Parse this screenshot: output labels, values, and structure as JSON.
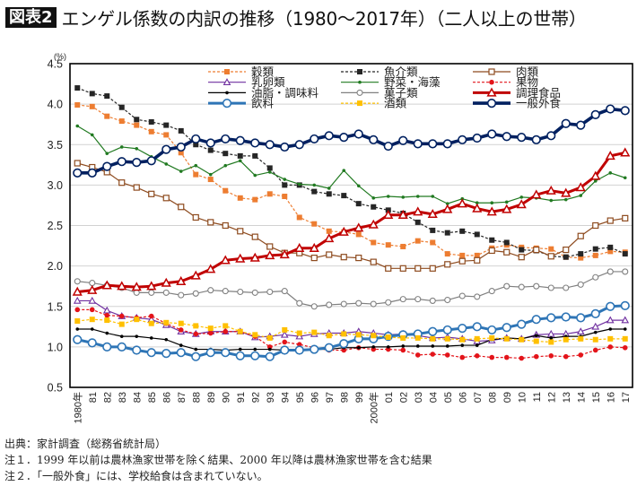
{
  "header": {
    "badge": "図表2"
  },
  "chart_data": {
    "type": "line",
    "title": "エンゲル係数の内訳の推移（1980～2017年）（二人以上の世帯）",
    "xlabel": "",
    "ylabel": "(%)",
    "ylim": [
      0.5,
      4.5
    ],
    "grid": "horizontal",
    "legend_position": "top-right",
    "y_ticks": [
      {
        "value": 0.5,
        "label": "0.5"
      },
      {
        "value": 1.0,
        "label": "1.0"
      },
      {
        "value": 1.5,
        "label": "1.5"
      },
      {
        "value": 2.0,
        "label": "2.0"
      },
      {
        "value": 2.5,
        "label": "2.5"
      },
      {
        "value": 3.0,
        "label": "3.0"
      },
      {
        "value": 3.5,
        "label": "3.5"
      },
      {
        "value": 4.0,
        "label": "4.0"
      },
      {
        "value": 4.5,
        "label": "4.5"
      }
    ],
    "x": [
      1980,
      1981,
      1982,
      1983,
      1984,
      1985,
      1986,
      1987,
      1988,
      1989,
      1990,
      1991,
      1992,
      1993,
      1994,
      1995,
      1996,
      1997,
      1998,
      1999,
      2000,
      2001,
      2002,
      2003,
      2004,
      2005,
      2006,
      2007,
      2008,
      2009,
      2010,
      2011,
      2012,
      2013,
      2014,
      2015,
      2016,
      2017
    ],
    "x_tick_labels": [
      "1980年",
      "81",
      "82",
      "83",
      "84",
      "85",
      "86",
      "87",
      "88",
      "89",
      "90",
      "91",
      "92",
      "93",
      "94",
      "95",
      "96",
      "97",
      "98",
      "99",
      "2000年",
      "01",
      "02",
      "03",
      "04",
      "05",
      "06",
      "07",
      "08",
      "09",
      "10",
      "11",
      "12",
      "13",
      "14",
      "15",
      "16",
      "17"
    ],
    "series": [
      {
        "name": "穀類",
        "color": "#ED7D31",
        "line_style": "dashed",
        "marker": "square-filled",
        "weight": "thin",
        "values": [
          3.99,
          3.97,
          3.85,
          3.79,
          3.74,
          3.66,
          3.62,
          3.4,
          3.13,
          3.07,
          2.93,
          2.84,
          2.82,
          2.89,
          2.86,
          2.6,
          2.52,
          2.43,
          2.42,
          2.39,
          2.29,
          2.26,
          2.24,
          2.31,
          2.29,
          2.15,
          2.13,
          2.13,
          2.22,
          2.26,
          2.23,
          2.22,
          2.21,
          2.11,
          2.1,
          2.13,
          2.18,
          2.17
        ]
      },
      {
        "name": "魚介類",
        "color": "#262626",
        "line_style": "dashed",
        "marker": "square-filled",
        "weight": "thin",
        "values": [
          4.2,
          4.13,
          4.1,
          3.96,
          3.81,
          3.78,
          3.74,
          3.67,
          3.5,
          3.43,
          3.39,
          3.36,
          3.36,
          3.21,
          3.0,
          3.0,
          2.92,
          2.89,
          2.87,
          2.77,
          2.73,
          2.69,
          2.65,
          2.54,
          2.44,
          2.41,
          2.43,
          2.39,
          2.32,
          2.29,
          2.2,
          2.19,
          2.12,
          2.11,
          2.15,
          2.21,
          2.23,
          2.15
        ]
      },
      {
        "name": "肉類",
        "color": "#8E4B1F",
        "line_style": "solid",
        "marker": "square-open",
        "weight": "thin",
        "values": [
          3.27,
          3.22,
          3.16,
          3.03,
          2.97,
          2.89,
          2.84,
          2.73,
          2.6,
          2.54,
          2.5,
          2.43,
          2.36,
          2.24,
          2.16,
          2.16,
          2.1,
          2.14,
          2.11,
          2.1,
          2.05,
          1.97,
          1.97,
          1.97,
          1.97,
          2.02,
          2.06,
          2.07,
          2.19,
          2.17,
          2.11,
          2.2,
          2.12,
          2.2,
          2.37,
          2.5,
          2.56,
          2.59
        ]
      },
      {
        "name": "乳卵類",
        "color": "#7030A0",
        "line_style": "solid",
        "marker": "triangle-open",
        "weight": "thin",
        "values": [
          1.57,
          1.57,
          1.45,
          1.38,
          1.36,
          1.34,
          1.27,
          1.19,
          1.16,
          1.19,
          1.19,
          1.19,
          1.12,
          1.13,
          1.15,
          1.13,
          1.16,
          1.17,
          1.17,
          1.19,
          1.17,
          1.15,
          1.16,
          1.14,
          1.11,
          1.12,
          1.1,
          1.07,
          1.08,
          1.11,
          1.1,
          1.15,
          1.16,
          1.16,
          1.19,
          1.25,
          1.33,
          1.33
        ]
      },
      {
        "name": "野菜・海藻",
        "color": "#217A21",
        "line_style": "solid",
        "marker": "dot",
        "weight": "thin",
        "values": [
          3.73,
          3.62,
          3.39,
          3.47,
          3.45,
          3.35,
          3.26,
          3.17,
          3.24,
          3.13,
          3.24,
          3.3,
          3.12,
          3.16,
          3.07,
          3.01,
          3.0,
          2.96,
          3.18,
          2.99,
          2.84,
          2.86,
          2.85,
          2.86,
          2.86,
          2.77,
          2.83,
          2.78,
          2.78,
          2.79,
          2.85,
          2.84,
          2.81,
          2.82,
          2.87,
          3.05,
          3.15,
          3.09
        ]
      },
      {
        "name": "果物",
        "color": "#E3141A",
        "line_style": "dashed",
        "marker": "circle-filled",
        "weight": "thin",
        "values": [
          1.46,
          1.46,
          1.39,
          1.38,
          1.36,
          1.38,
          1.29,
          1.21,
          1.16,
          1.17,
          1.19,
          1.19,
          1.13,
          1.0,
          1.06,
          1.03,
          0.99,
          0.96,
          0.96,
          0.99,
          0.97,
          0.97,
          0.96,
          0.9,
          0.91,
          0.9,
          0.87,
          0.89,
          0.87,
          0.87,
          0.86,
          0.88,
          0.89,
          0.88,
          0.9,
          0.96,
          1.0,
          0.99
        ]
      },
      {
        "name": "油脂・調味料",
        "color": "#000000",
        "line_style": "solid",
        "marker": "dot",
        "weight": "thin",
        "values": [
          1.22,
          1.22,
          1.17,
          1.13,
          1.13,
          1.11,
          1.09,
          1.02,
          0.97,
          0.97,
          0.96,
          0.97,
          0.97,
          0.97,
          0.96,
          0.97,
          0.97,
          0.97,
          0.99,
          0.99,
          1.0,
          1.0,
          1.01,
          1.01,
          1.01,
          1.01,
          1.02,
          1.02,
          1.09,
          1.11,
          1.1,
          1.14,
          1.11,
          1.13,
          1.13,
          1.18,
          1.22,
          1.22
        ]
      },
      {
        "name": "菓子類",
        "color": "#808080",
        "line_style": "solid",
        "marker": "circle-open",
        "weight": "thin",
        "values": [
          1.81,
          1.79,
          1.76,
          1.73,
          1.67,
          1.67,
          1.67,
          1.64,
          1.66,
          1.7,
          1.69,
          1.68,
          1.67,
          1.68,
          1.69,
          1.54,
          1.5,
          1.52,
          1.53,
          1.54,
          1.53,
          1.55,
          1.59,
          1.59,
          1.57,
          1.58,
          1.63,
          1.62,
          1.69,
          1.75,
          1.74,
          1.75,
          1.73,
          1.73,
          1.77,
          1.86,
          1.93,
          1.93
        ]
      },
      {
        "name": "調理食品",
        "color": "#C00000",
        "line_style": "solid",
        "marker": "triangle-open",
        "weight": "bold",
        "values": [
          1.68,
          1.7,
          1.76,
          1.75,
          1.74,
          1.75,
          1.79,
          1.81,
          1.88,
          1.96,
          2.07,
          2.09,
          2.1,
          2.13,
          2.14,
          2.22,
          2.22,
          2.34,
          2.42,
          2.47,
          2.51,
          2.63,
          2.63,
          2.67,
          2.64,
          2.7,
          2.77,
          2.71,
          2.67,
          2.7,
          2.76,
          2.88,
          2.93,
          2.9,
          2.97,
          3.11,
          3.36,
          3.4
        ]
      },
      {
        "name": "飲料",
        "color": "#2E75B6",
        "line_style": "solid",
        "marker": "circle-open",
        "weight": "bold",
        "values": [
          1.09,
          1.05,
          1.0,
          1.0,
          0.96,
          0.93,
          0.92,
          0.93,
          0.88,
          0.93,
          0.93,
          0.89,
          0.89,
          0.88,
          0.96,
          0.96,
          0.97,
          0.99,
          1.04,
          1.1,
          1.1,
          1.13,
          1.15,
          1.16,
          1.19,
          1.21,
          1.23,
          1.25,
          1.21,
          1.24,
          1.28,
          1.34,
          1.36,
          1.37,
          1.36,
          1.41,
          1.5,
          1.51
        ]
      },
      {
        "name": "酒類",
        "color": "#FFC000",
        "line_style": "dashed",
        "marker": "square-filled",
        "weight": "thin",
        "values": [
          1.32,
          1.34,
          1.33,
          1.28,
          1.34,
          1.29,
          1.3,
          1.29,
          1.26,
          1.23,
          1.26,
          1.19,
          1.15,
          1.11,
          1.21,
          1.17,
          1.18,
          1.14,
          1.16,
          1.15,
          1.14,
          1.12,
          1.11,
          1.11,
          1.1,
          1.1,
          1.09,
          1.1,
          1.11,
          1.1,
          1.09,
          1.07,
          1.06,
          1.09,
          1.1,
          1.09,
          1.1,
          1.1
        ]
      },
      {
        "name": "一般外食",
        "color": "#002060",
        "line_style": "solid",
        "marker": "circle-open",
        "weight": "bold",
        "values": [
          3.15,
          3.15,
          3.23,
          3.29,
          3.28,
          3.3,
          3.44,
          3.47,
          3.57,
          3.52,
          3.57,
          3.55,
          3.52,
          3.5,
          3.47,
          3.5,
          3.57,
          3.61,
          3.59,
          3.63,
          3.56,
          3.48,
          3.55,
          3.51,
          3.51,
          3.51,
          3.56,
          3.58,
          3.63,
          3.6,
          3.59,
          3.56,
          3.61,
          3.76,
          3.74,
          3.87,
          3.94,
          3.92
        ]
      }
    ]
  },
  "footnotes": {
    "source": "出典：家計調査（総務省統計局）",
    "notes": [
      "注１．1999 年以前は農林漁家世帯を除く結果、2000 年以降は農林漁家世帯を含む結果",
      "注２．「一般外食」には、学校給食は含まれていない。"
    ]
  }
}
